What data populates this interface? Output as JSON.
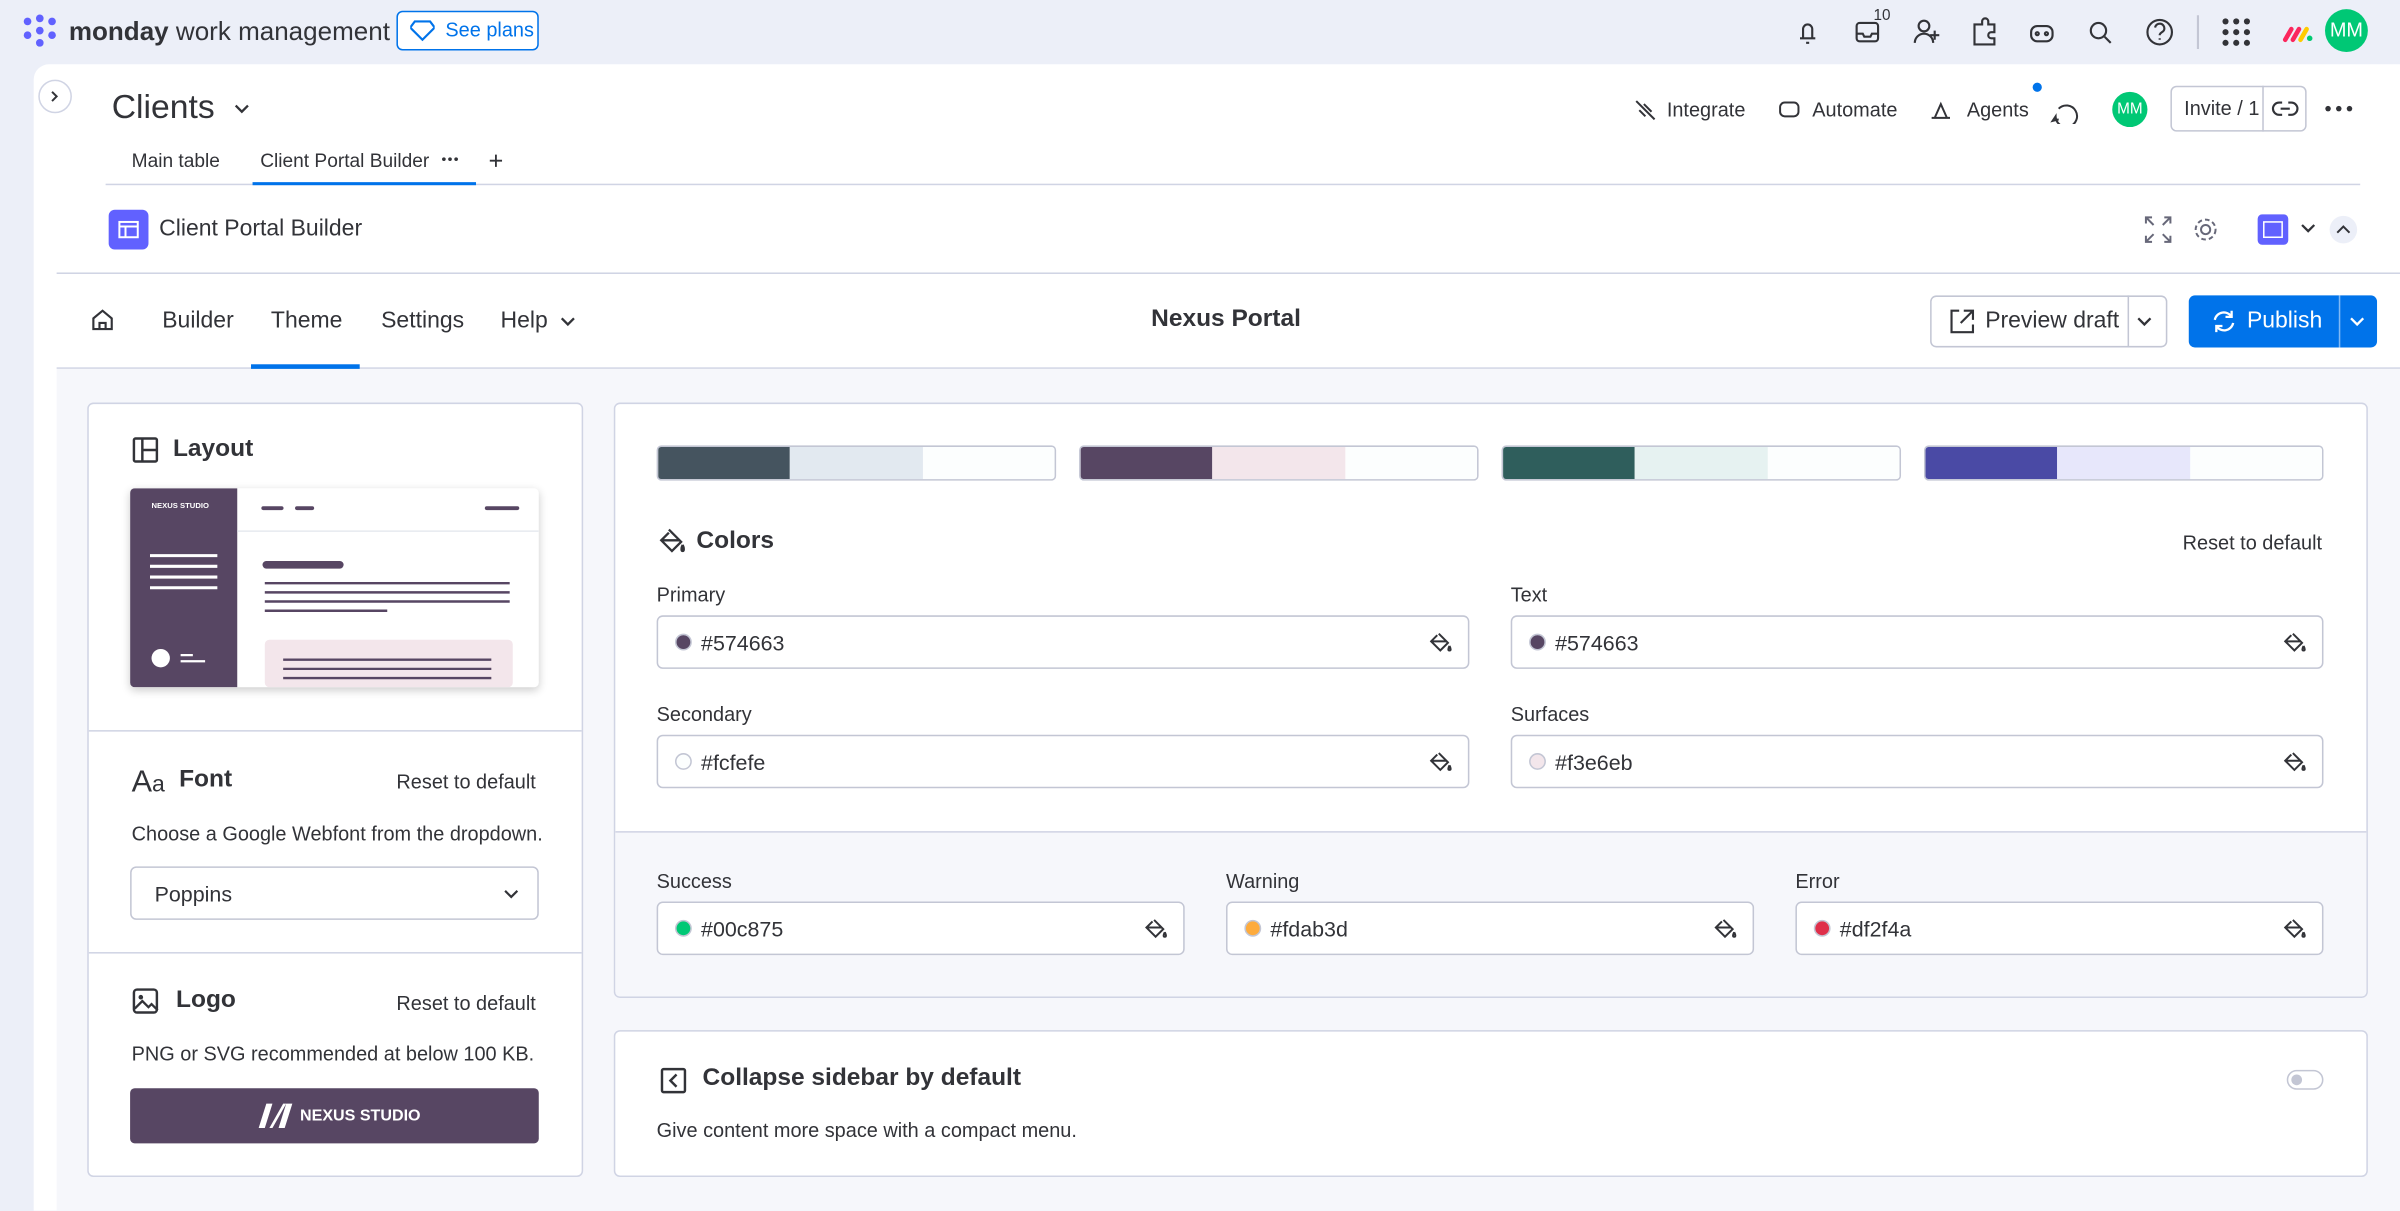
{
  "topbar": {
    "brand_bold": "monday",
    "brand_rest": "work management",
    "see_plans": "See plans",
    "inbox_badge": "10",
    "avatar": "MM"
  },
  "board": {
    "title": "Clients",
    "actions": [
      "Integrate",
      "Automate",
      "Agents"
    ],
    "avatar": "MM",
    "invite": "Invite / 1",
    "tabs": [
      "Main table",
      "Client Portal Builder"
    ]
  },
  "widget": {
    "title": "Client Portal Builder"
  },
  "nav": {
    "items": [
      "Builder",
      "Theme",
      "Settings",
      "Help"
    ],
    "portal_name": "Nexus Portal",
    "preview": "Preview draft",
    "publish": "Publish"
  },
  "layout": {
    "title": "Layout",
    "preview_brand": "NEXUS STUDIO"
  },
  "font": {
    "title": "Font",
    "reset": "Reset to default",
    "hint": "Choose a Google Webfont from the dropdown.",
    "selected": "Poppins"
  },
  "logo": {
    "title": "Logo",
    "reset": "Reset to default",
    "hint": "PNG or SVG recommended at below 100 KB.",
    "brand": "NEXUS STUDIO"
  },
  "colors": {
    "title": "Colors",
    "reset": "Reset to default",
    "fields": [
      {
        "label": "Primary",
        "value": "#574663"
      },
      {
        "label": "Text",
        "value": "#574663"
      },
      {
        "label": "Secondary",
        "value": "#fcfefe"
      },
      {
        "label": "Surfaces",
        "value": "#f3e6eb"
      },
      {
        "label": "Success",
        "value": "#00c875"
      },
      {
        "label": "Warning",
        "value": "#fdab3d"
      },
      {
        "label": "Error",
        "value": "#df2f4a"
      }
    ]
  },
  "sidebar_option": {
    "title": "Collapse sidebar by default",
    "description": "Give content more space with a compact menu."
  }
}
